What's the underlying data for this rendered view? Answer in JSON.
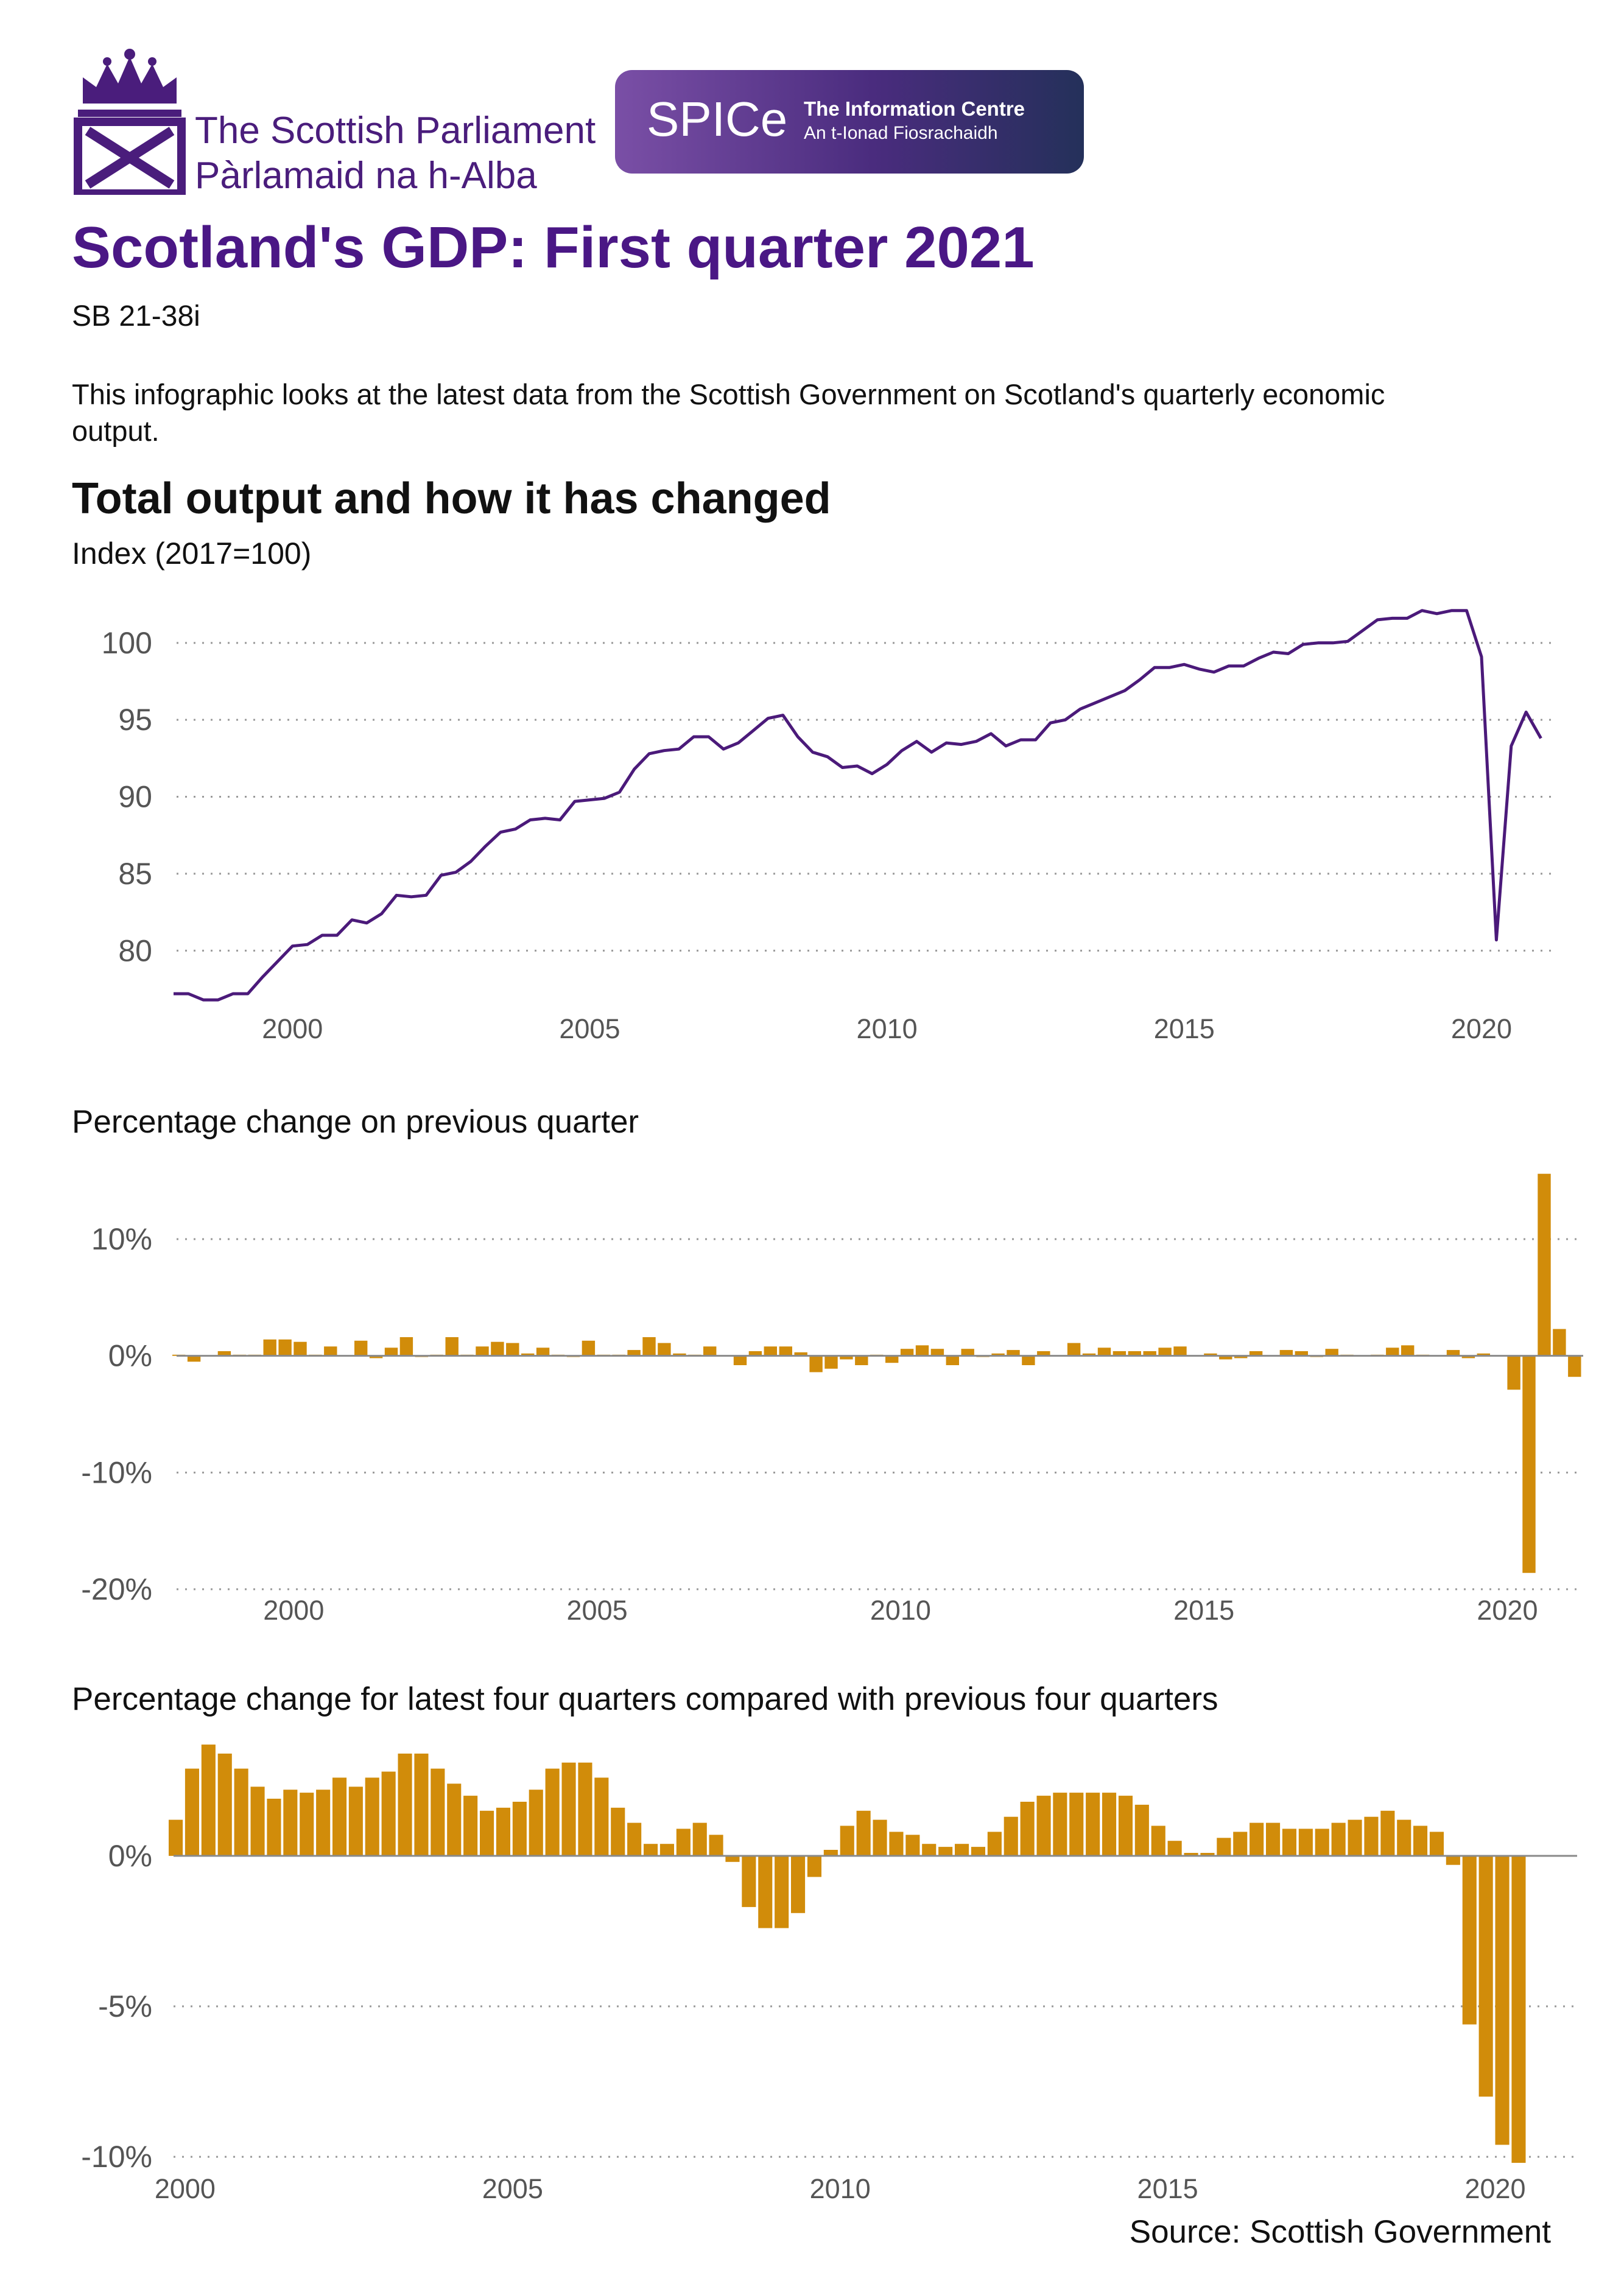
{
  "header": {
    "org_line1": "The Scottish Parliament",
    "org_line2": "Pàrlamaid na h-Alba",
    "spice_word": "SPICe",
    "spice_line1": "The Information Centre",
    "spice_line2": "An t-Ionad Fiosrachaidh"
  },
  "title": "Scotland's GDP: First quarter 2021",
  "doc_ref": "SB  21-38i",
  "intro": "This infographic looks at the latest data from the Scottish Government on Scotland's quarterly economic output.",
  "section_title": "Total output and how it has changed",
  "source": "Source: Scottish Government",
  "colors": {
    "brand": "#4a1785",
    "line": "#4b1a7a",
    "bar": "#d18c0a"
  },
  "chart_data": [
    {
      "type": "line",
      "title": "Total output",
      "ylabel": "Index (2017=100)",
      "ylim": [
        75.5,
        103
      ],
      "yticks": [
        80,
        85,
        90,
        95,
        100
      ],
      "xlim": [
        1998,
        2021.25
      ],
      "xticks": [
        2000,
        2005,
        2010,
        2015,
        2020
      ],
      "grid": "horizontal dotted",
      "start": 1998.0,
      "step": 0.25,
      "values": [
        77.2,
        77.2,
        76.8,
        76.8,
        77.2,
        77.2,
        78.3,
        79.3,
        80.3,
        80.4,
        81.0,
        81.0,
        82.0,
        81.8,
        82.4,
        83.6,
        83.5,
        83.6,
        84.9,
        85.1,
        85.8,
        86.8,
        87.7,
        87.9,
        88.5,
        88.6,
        88.5,
        89.7,
        89.8,
        89.9,
        90.3,
        91.8,
        92.8,
        93.0,
        93.1,
        93.9,
        93.9,
        93.1,
        93.5,
        94.3,
        95.1,
        95.3,
        93.9,
        92.9,
        92.6,
        91.9,
        92.0,
        91.5,
        92.1,
        93.0,
        93.6,
        92.9,
        93.5,
        93.4,
        93.6,
        94.1,
        93.3,
        93.7,
        93.7,
        94.8,
        95.0,
        95.7,
        96.1,
        96.5,
        96.9,
        97.6,
        98.4,
        98.4,
        98.6,
        98.3,
        98.1,
        98.5,
        98.5,
        99.0,
        99.4,
        99.3,
        99.9,
        100.0,
        100.0,
        100.1,
        100.8,
        101.5,
        101.6,
        101.6,
        102.1,
        101.9,
        102.1,
        102.1,
        99.1,
        80.7,
        93.3,
        95.5,
        93.8
      ]
    },
    {
      "type": "bar",
      "title": "Percentage change on previous quarter",
      "ylim": [
        -20,
        16
      ],
      "yticks": [
        -20,
        -10,
        0,
        10
      ],
      "ytick_labels": [
        "-20%",
        "-10%",
        "0%",
        "10%"
      ],
      "xlim": [
        1998,
        2021.25
      ],
      "xticks": [
        2000,
        2005,
        2010,
        2015,
        2020
      ],
      "grid": "horizontal dotted",
      "start": 1998.0,
      "step": 0.25,
      "values": [
        0.1,
        -0.5,
        0.0,
        0.4,
        0.1,
        0.1,
        1.4,
        1.4,
        1.2,
        0.1,
        0.8,
        0.0,
        1.3,
        -0.2,
        0.7,
        1.6,
        -0.1,
        0.1,
        1.6,
        0.1,
        0.8,
        1.2,
        1.1,
        0.2,
        0.7,
        0.1,
        -0.1,
        1.3,
        0.1,
        0.1,
        0.5,
        1.6,
        1.1,
        0.2,
        0.1,
        0.8,
        0.0,
        -0.8,
        0.4,
        0.8,
        0.8,
        0.3,
        -1.4,
        -1.1,
        -0.3,
        -0.8,
        0.1,
        -0.6,
        0.6,
        0.9,
        0.6,
        -0.8,
        0.6,
        -0.1,
        0.2,
        0.5,
        -0.8,
        0.4,
        0.0,
        1.1,
        0.2,
        0.7,
        0.4,
        0.4,
        0.4,
        0.7,
        0.8,
        0.0,
        0.2,
        -0.3,
        -0.2,
        0.4,
        0.0,
        0.5,
        0.4,
        -0.1,
        0.6,
        0.1,
        0.0,
        0.1,
        0.7,
        0.9,
        0.1,
        0.0,
        0.5,
        -0.2,
        0.2,
        0.0,
        -2.9,
        -18.6,
        15.6,
        2.3,
        -1.8
      ]
    },
    {
      "type": "bar",
      "title": "Percentage change for latest four quarters compared with previous four quarters",
      "ylim": [
        -10.3,
        3.6
      ],
      "yticks": [
        -10,
        -5,
        0
      ],
      "ytick_labels": [
        "-10%",
        "-5%",
        "0%"
      ],
      "xlim": [
        1999.75,
        2021.25
      ],
      "xticks": [
        2000,
        2005,
        2010,
        2015,
        2020
      ],
      "grid": "horizontal dotted",
      "start": 1999.75,
      "step": 0.25,
      "values": [
        1.2,
        2.9,
        3.7,
        3.4,
        2.9,
        2.3,
        1.9,
        2.2,
        2.1,
        2.2,
        2.6,
        2.3,
        2.6,
        2.8,
        3.4,
        3.4,
        2.9,
        2.4,
        2.0,
        1.5,
        1.6,
        1.8,
        2.2,
        2.9,
        3.1,
        3.1,
        2.6,
        1.6,
        1.1,
        0.4,
        0.4,
        0.9,
        1.1,
        0.7,
        -0.2,
        -1.7,
        -2.4,
        -2.4,
        -1.9,
        -0.7,
        0.2,
        1.0,
        1.5,
        1.2,
        0.8,
        0.7,
        0.4,
        0.3,
        0.4,
        0.3,
        0.8,
        1.3,
        1.8,
        2.0,
        2.1,
        2.1,
        2.1,
        2.1,
        2.0,
        1.7,
        1.0,
        0.5,
        0.1,
        0.1,
        0.6,
        0.8,
        1.1,
        1.1,
        0.9,
        0.9,
        0.9,
        1.1,
        1.2,
        1.3,
        1.5,
        1.2,
        1.0,
        0.8,
        -0.3,
        -5.6,
        -8.0,
        -9.6,
        -10.2
      ]
    }
  ]
}
